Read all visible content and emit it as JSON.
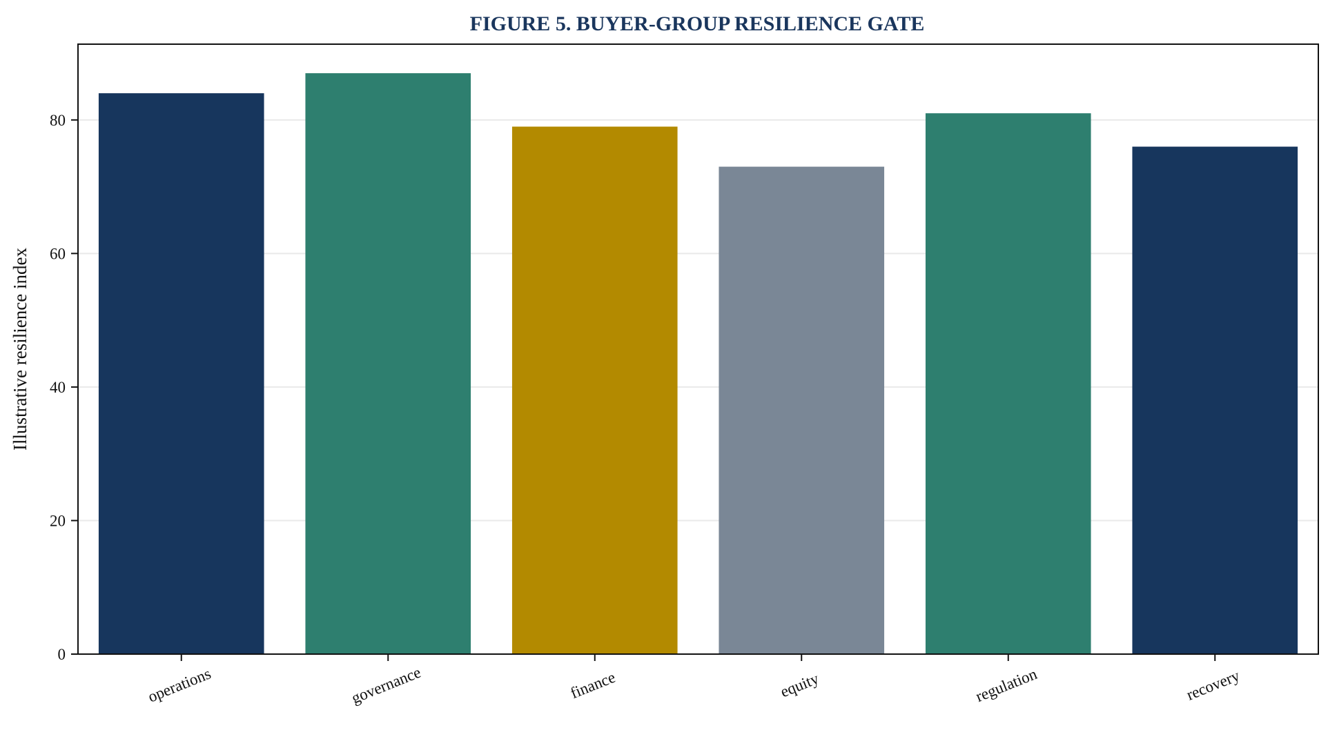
{
  "chart_data": {
    "type": "bar",
    "title": "FIGURE 5. BUYER-GROUP RESILIENCE GATE",
    "xlabel": "",
    "ylabel": "Illustrative resilience index",
    "categories": [
      "operations",
      "governance",
      "finance",
      "equity",
      "regulation",
      "recovery"
    ],
    "values": [
      84,
      87,
      79,
      73,
      81,
      76
    ],
    "colors": [
      "#17365d",
      "#2e7f6f",
      "#b38a00",
      "#7a8796",
      "#2e7f6f",
      "#17365d"
    ],
    "ylim": [
      0,
      91.35
    ],
    "yticks": [
      0,
      20,
      40,
      60,
      80
    ],
    "grid": "y",
    "gridColor": "#e9e9e9",
    "axisColor": "#111111"
  }
}
